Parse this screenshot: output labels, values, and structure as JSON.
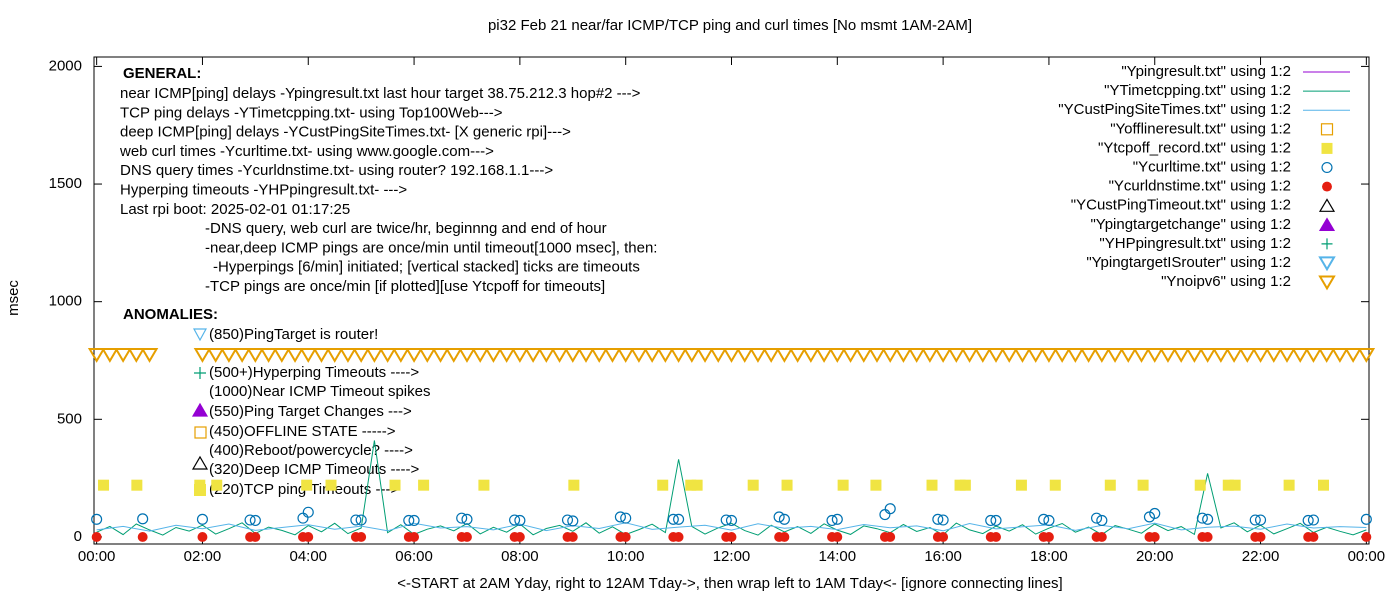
{
  "chart_data": {
    "type": "line",
    "title": "pi32 Feb 21  near/far ICMP/TCP ping and curl times [No msmt 1AM-2AM]",
    "xlabel": "<-START at 2AM Yday, right to 12AM Tday->, then wrap left to 1AM Tday<- [ignore connecting lines]",
    "ylabel": "msec",
    "xlim": [
      -0.05,
      24.05
    ],
    "ylim": [
      -30,
      2040
    ],
    "xticks": [
      {
        "value": 0,
        "label": "00:00"
      },
      {
        "value": 2,
        "label": "02:00"
      },
      {
        "value": 4,
        "label": "04:00"
      },
      {
        "value": 6,
        "label": "06:00"
      },
      {
        "value": 8,
        "label": "08:00"
      },
      {
        "value": 10,
        "label": "10:00"
      },
      {
        "value": 12,
        "label": "12:00"
      },
      {
        "value": 14,
        "label": "14:00"
      },
      {
        "value": 16,
        "label": "16:00"
      },
      {
        "value": 18,
        "label": "18:00"
      },
      {
        "value": 20,
        "label": "20:00"
      },
      {
        "value": 22,
        "label": "22:00"
      },
      {
        "value": 24,
        "label": "00:00"
      }
    ],
    "yticks": [
      0,
      500,
      1000,
      1500,
      2000
    ],
    "legend": "top-right",
    "general_heading": "GENERAL:",
    "general": [
      "near ICMP[ping] delays -Ypingresult.txt last hour target 38.75.212.3 hop#2 --->",
      "TCP ping delays -YTimetcpping.txt- using Top100Web--->",
      "deep ICMP[ping] delays -YCustPingSiteTimes.txt- [X generic rpi]--->",
      "web curl times -Ycurltime.txt- using www.google.com--->",
      "DNS query times -Ycurldnstime.txt- using router? 192.168.1.1--->",
      "Hyperping timeouts -YHPpingresult.txt- --->",
      "Last rpi boot: 2025-02-01 01:17:25",
      "-DNS query, web curl are twice/hr, beginnng and end of hour",
      "-near,deep ICMP pings are once/min until timeout[1000 msec], then:",
      "-Hyperpings [6/min] initiated; [vertical stacked] ticks are timeouts",
      "-TCP pings are once/min [if plotted][use Ytcpoff for timeouts]"
    ],
    "anomalies_heading": "ANOMALIES:",
    "anomalies": [
      "(850)PingTarget is router!",
      "(500+)Hyperping Timeouts ---->",
      "(1000)Near ICMP Timeout spikes",
      "(550)Ping Target Changes --->",
      "(450)OFFLINE STATE ----->",
      "(400)Reboot/powercycle? ---->",
      "(320)Deep ICMP Timeouts ---->",
      "(220)TCP ping Timeouts --->"
    ],
    "series": [
      {
        "name": "\"Ypingresult.txt\" using 1:2",
        "color": "#9400d3",
        "marker": "line",
        "x": [],
        "values": []
      },
      {
        "name": "\"YTimetcpping.txt\" using 1:2",
        "color": "#009e73",
        "marker": "line",
        "x": [
          0,
          0.25,
          0.5,
          0.75,
          1,
          1.25,
          1.5,
          1.75,
          2,
          2.25,
          2.5,
          2.75,
          3,
          3.25,
          3.5,
          3.75,
          4,
          4.25,
          4.5,
          4.75,
          5,
          5.25,
          5.5,
          5.75,
          6,
          6.25,
          6.5,
          6.75,
          7,
          7.25,
          7.5,
          7.75,
          8,
          8.25,
          8.5,
          8.75,
          9,
          9.25,
          9.5,
          9.75,
          10,
          10.25,
          10.5,
          10.75,
          11,
          11.25,
          11.5,
          11.75,
          12,
          12.25,
          12.5,
          12.75,
          13,
          13.25,
          13.5,
          13.75,
          14,
          14.25,
          14.5,
          14.75,
          15,
          15.25,
          15.5,
          15.75,
          16,
          16.25,
          16.5,
          16.75,
          17,
          17.25,
          17.5,
          17.75,
          18,
          18.25,
          18.5,
          18.75,
          19,
          19.25,
          19.5,
          19.75,
          20,
          20.25,
          20.5,
          20.75,
          21,
          21.25,
          21.5,
          21.75,
          22,
          22.25,
          22.5,
          22.75,
          23,
          23.25,
          23.5,
          23.75,
          24
        ],
        "values": [
          20,
          45,
          10,
          55,
          30,
          8,
          40,
          25,
          50,
          12,
          35,
          60,
          15,
          42,
          28,
          9,
          48,
          22,
          58,
          14,
          38,
          410,
          18,
          52,
          11,
          33,
          47,
          26,
          57,
          13,
          41,
          20,
          55,
          9,
          36,
          49,
          24,
          60,
          16,
          43,
          10,
          31,
          54,
          19,
          330,
          45,
          12,
          39,
          58,
          27,
          8,
          50,
          21,
          44,
          15,
          56,
          29,
          11,
          47,
          35,
          18,
          53,
          23,
          40,
          9,
          59,
          30,
          14,
          46,
          25,
          52,
          12,
          37,
          57,
          20,
          42,
          10,
          48,
          33,
          16,
          55,
          27,
          44,
          11,
          270,
          38,
          60,
          22,
          50,
          13,
          35,
          58,
          19,
          41,
          24,
          9,
          30
        ]
      },
      {
        "name": "\"YCustPingSiteTimes.txt\" using 1:2",
        "color": "#56b4e9",
        "marker": "line",
        "x": [
          0,
          0.5,
          1,
          1.5,
          2,
          2.5,
          3,
          3.5,
          4,
          4.5,
          5,
          5.5,
          6,
          6.5,
          7,
          7.5,
          8,
          8.5,
          9,
          9.5,
          10,
          10.5,
          11,
          11.5,
          12,
          12.5,
          13,
          13.5,
          14,
          14.5,
          15,
          15.5,
          16,
          16.5,
          17,
          17.5,
          18,
          18.5,
          19,
          19.5,
          20,
          20.5,
          21,
          21.5,
          22,
          22.5,
          23,
          23.5,
          24
        ],
        "values": [
          30,
          45,
          25,
          50,
          35,
          55,
          28,
          40,
          52,
          33,
          46,
          26,
          58,
          38,
          44,
          30,
          54,
          27,
          48,
          36,
          60,
          32,
          42,
          50,
          29,
          56,
          37,
          45,
          31,
          53,
          39,
          47,
          26,
          57,
          34,
          43,
          51,
          28,
          49,
          35,
          59,
          30,
          41,
          46,
          33,
          55,
          38,
          44,
          40
        ]
      },
      {
        "name": "\"Yofflineresult.txt\" using 1:2",
        "color": "#e69f00",
        "marker": "square-open",
        "x": [],
        "values": []
      },
      {
        "name": "\"Ytcpoff_record.txt\" using 1:2",
        "color": "#f0e442",
        "marker": "square-filled",
        "x": [
          0.13,
          0.76,
          1.95,
          2.27,
          3.97,
          4.43,
          5.64,
          6.18,
          7.32,
          9.02,
          10.7,
          11.23,
          11.35,
          12.41,
          13.05,
          14.11,
          14.73,
          15.79,
          16.32,
          16.42,
          17.48,
          18.12,
          19.16,
          19.78,
          20.86,
          21.39,
          21.52,
          22.54,
          23.19
        ],
        "values": [
          220,
          220,
          220,
          220,
          220,
          220,
          220,
          220,
          220,
          220,
          220,
          220,
          220,
          220,
          220,
          220,
          220,
          220,
          220,
          220,
          220,
          220,
          220,
          220,
          220,
          220,
          220,
          220,
          220
        ]
      },
      {
        "name": "\"Ycurltime.txt\" using 1:2",
        "color": "#0072b2",
        "marker": "circle-open",
        "x": [
          0,
          0.87,
          2,
          2.9,
          3,
          3.9,
          4,
          4.9,
          5,
          5.9,
          6,
          6.9,
          7,
          7.9,
          8,
          8.9,
          9,
          9.9,
          10,
          10.9,
          11,
          11.9,
          12,
          12.9,
          13,
          13.9,
          14,
          14.9,
          15,
          15.9,
          16,
          16.9,
          17,
          17.9,
          18,
          18.9,
          19,
          19.9,
          20,
          20.9,
          21,
          21.9,
          22,
          22.9,
          23,
          24
        ],
        "values": [
          75,
          77,
          75,
          72,
          70,
          80,
          105,
          72,
          72,
          70,
          70,
          80,
          75,
          72,
          70,
          72,
          68,
          85,
          80,
          75,
          75,
          72,
          70,
          85,
          75,
          70,
          75,
          95,
          120,
          75,
          72,
          70,
          70,
          75,
          70,
          80,
          70,
          85,
          100,
          80,
          75,
          72,
          72,
          70,
          72,
          75
        ]
      },
      {
        "name": "\"Ycurldnstime.txt\" using 1:2",
        "color": "#e51e10",
        "marker": "circle-filled",
        "x": [
          0,
          0.87,
          2,
          2.9,
          3,
          3.9,
          4,
          4.9,
          5,
          5.9,
          6,
          6.9,
          7,
          7.9,
          8,
          8.9,
          9,
          9.9,
          10,
          10.9,
          11,
          11.9,
          12,
          12.9,
          13,
          13.9,
          14,
          14.9,
          15,
          15.9,
          16,
          16.9,
          17,
          17.9,
          18,
          18.9,
          19,
          19.9,
          20,
          20.9,
          21,
          21.9,
          22,
          22.9,
          23,
          24
        ],
        "values": [
          0,
          0,
          0,
          0,
          0,
          0,
          0,
          0,
          0,
          0,
          0,
          0,
          0,
          0,
          0,
          0,
          0,
          0,
          0,
          0,
          0,
          0,
          0,
          0,
          0,
          0,
          0,
          0,
          0,
          0,
          0,
          0,
          0,
          0,
          0,
          0,
          0,
          0,
          0,
          0,
          0,
          0,
          0,
          0,
          0,
          0
        ]
      },
      {
        "name": "\"YCustPingTimeout.txt\" using 1:2",
        "color": "#000000",
        "marker": "triangle-open",
        "x": [],
        "values": []
      },
      {
        "name": "\"Ypingtargetchange\" using 1:2",
        "color": "#9400d3",
        "marker": "triangle-filled",
        "x": [],
        "values": []
      },
      {
        "name": "\"YHPpingresult.txt\" using 1:2",
        "color": "#009e73",
        "marker": "plus",
        "x": [],
        "values": []
      },
      {
        "name": "\"YpingtargetISrouter\" using 1:2",
        "color": "#56b4e9",
        "marker": "triangle-down-open",
        "x": [],
        "values": []
      },
      {
        "name": "\"Ynoipv6\" using 1:2",
        "color": "#e69f00",
        "marker": "triangle-down-open",
        "x": [
          0,
          0.25,
          0.5,
          0.75,
          1,
          2,
          2.25,
          2.5,
          2.75,
          3,
          3.25,
          3.5,
          3.75,
          4,
          4.25,
          4.5,
          4.75,
          5,
          5.25,
          5.5,
          5.75,
          6,
          6.25,
          6.5,
          6.75,
          7,
          7.25,
          7.5,
          7.75,
          8,
          8.25,
          8.5,
          8.75,
          9,
          9.25,
          9.5,
          9.75,
          10,
          10.25,
          10.5,
          10.75,
          11,
          11.25,
          11.5,
          11.75,
          12,
          12.25,
          12.5,
          12.75,
          13,
          13.25,
          13.5,
          13.75,
          14,
          14.25,
          14.5,
          14.75,
          15,
          15.25,
          15.5,
          15.75,
          16,
          16.25,
          16.5,
          16.75,
          17,
          17.25,
          17.5,
          17.75,
          18,
          18.25,
          18.5,
          18.75,
          19,
          19.25,
          19.5,
          19.75,
          20,
          20.25,
          20.5,
          20.75,
          21,
          21.25,
          21.5,
          21.75,
          22,
          22.25,
          22.5,
          22.75,
          23,
          23.25,
          23.5,
          23.75,
          24
        ],
        "values": [
          775,
          775,
          775,
          775,
          775,
          775,
          775,
          775,
          775,
          775,
          775,
          775,
          775,
          775,
          775,
          775,
          775,
          775,
          775,
          775,
          775,
          775,
          775,
          775,
          775,
          775,
          775,
          775,
          775,
          775,
          775,
          775,
          775,
          775,
          775,
          775,
          775,
          775,
          775,
          775,
          775,
          775,
          775,
          775,
          775,
          775,
          775,
          775,
          775,
          775,
          775,
          775,
          775,
          775,
          775,
          775,
          775,
          775,
          775,
          775,
          775,
          775,
          775,
          775,
          775,
          775,
          775,
          775,
          775,
          775,
          775,
          775,
          775,
          775,
          775,
          775,
          775,
          775,
          775,
          775,
          775,
          775,
          775,
          775,
          775,
          775,
          775,
          775,
          775,
          775,
          775,
          775,
          775,
          775
        ]
      }
    ]
  }
}
